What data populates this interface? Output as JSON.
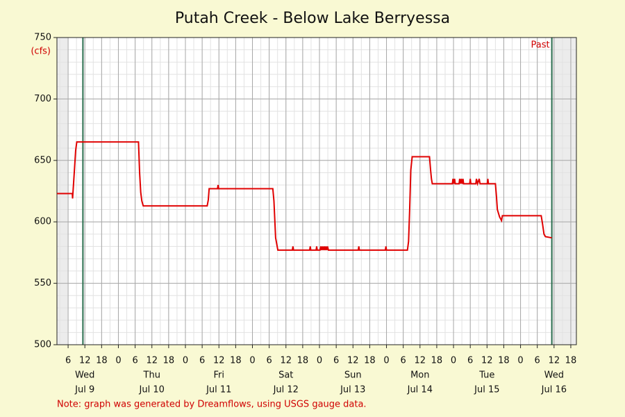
{
  "chart_data": {
    "type": "line",
    "title": "Putah Creek - Below Lake Berryessa",
    "y_label": "(cfs)",
    "note": "Note: graph was generated by Dreamflows, using USGS gauge data.",
    "past_label": "Past",
    "xlim": [
      2,
      188
    ],
    "ylim": [
      500,
      750
    ],
    "yticks": [
      500,
      550,
      600,
      650,
      700,
      750
    ],
    "xticks": [
      6,
      12,
      18,
      {
        "value": 24,
        "label": "0"
      },
      {
        "value": 30,
        "label": "6"
      },
      {
        "value": 36,
        "label": "12"
      },
      {
        "value": 42,
        "label": "18"
      },
      {
        "value": 48,
        "label": "0"
      },
      {
        "value": 54,
        "label": "6"
      },
      {
        "value": 60,
        "label": "12"
      },
      {
        "value": 66,
        "label": "18"
      },
      {
        "value": 72,
        "label": "0"
      },
      {
        "value": 78,
        "label": "6"
      },
      {
        "value": 84,
        "label": "12"
      },
      {
        "value": 90,
        "label": "18"
      },
      {
        "value": 96,
        "label": "0"
      },
      {
        "value": 102,
        "label": "6"
      },
      {
        "value": 108,
        "label": "12"
      },
      {
        "value": 114,
        "label": "18"
      },
      {
        "value": 120,
        "label": "0"
      },
      {
        "value": 126,
        "label": "6"
      },
      {
        "value": 132,
        "label": "12"
      },
      {
        "value": 138,
        "label": "18"
      },
      {
        "value": 144,
        "label": "0"
      },
      {
        "value": 150,
        "label": "6"
      },
      {
        "value": 156,
        "label": "12"
      },
      {
        "value": 162,
        "label": "18"
      },
      {
        "value": 168,
        "label": "0"
      },
      {
        "value": 174,
        "label": "6"
      },
      {
        "value": 180,
        "label": "12"
      },
      {
        "value": 186,
        "label": "18"
      }
    ],
    "day_labels": [
      {
        "value": 12,
        "label": "Wed",
        "date": "Jul 9"
      },
      {
        "value": 36,
        "label": "Thu",
        "date": "Jul 10"
      },
      {
        "value": 60,
        "label": "Fri",
        "date": "Jul 11"
      },
      {
        "value": 84,
        "label": "Sat",
        "date": "Jul 12"
      },
      {
        "value": 108,
        "label": "Sun",
        "date": "Jul 13"
      },
      {
        "value": 132,
        "label": "Mon",
        "date": "Jul 14"
      },
      {
        "value": 156,
        "label": "Tue",
        "date": "Jul 15"
      },
      {
        "value": 180,
        "label": "Wed",
        "date": "Jul 16"
      }
    ],
    "markers": [
      11.3,
      179.2
    ],
    "shaded": [
      [
        2,
        6
      ],
      [
        179.2,
        188
      ]
    ],
    "grid": true,
    "series": [
      {
        "name": "Flow",
        "color": "#e00000",
        "x": [
          2,
          7.5,
          7.6,
          8.2,
          8.7,
          9.1,
          31.2,
          31.6,
          32.0,
          32.4,
          32.9,
          55.8,
          56.2,
          56.5,
          59.5,
          59.7,
          59.9,
          79.3,
          79.7,
          80.3,
          81.1,
          86.3,
          86.5,
          86.7,
          92.5,
          92.7,
          92.9,
          94.8,
          95.0,
          95.2,
          96.2,
          96.5,
          96.8,
          97.1,
          97.4,
          97.7,
          98.0,
          98.3,
          98.6,
          98.9,
          99.2,
          99.4,
          109.9,
          110.1,
          110.3,
          119.6,
          119.8,
          120.0,
          127.5,
          127.9,
          128.3,
          128.7,
          129.2,
          135.4,
          135.8,
          136.1,
          136.4,
          143.6,
          143.8,
          144.1,
          144.4,
          144.6,
          146.0,
          146.2,
          146.6,
          146.8,
          147.2,
          147.4,
          147.6,
          149.8,
          150.0,
          150.2,
          152.0,
          152.2,
          152.6,
          153.2,
          153.5,
          156.1,
          156.3,
          156.5,
          159.0,
          159.4,
          159.7,
          160.5,
          161.2,
          161.5,
          175.4,
          175.9,
          176.4,
          176.9,
          179.2
        ],
        "values": [
          623,
          623,
          619,
          640,
          658,
          665,
          665,
          640,
          624,
          617,
          613,
          613,
          618,
          627,
          627,
          630,
          627,
          627,
          617,
          587,
          577,
          577,
          580,
          577,
          577,
          580,
          577,
          577,
          580,
          577,
          577,
          580,
          577,
          580,
          577,
          580,
          577,
          580,
          577,
          580,
          577,
          577,
          577,
          580,
          577,
          577,
          580,
          577,
          577,
          584,
          610,
          642,
          653,
          653,
          642,
          635,
          631,
          631,
          635,
          631,
          635,
          631,
          631,
          635,
          631,
          635,
          631,
          635,
          631,
          631,
          635,
          631,
          631,
          635,
          631,
          635,
          631,
          631,
          635,
          631,
          631,
          620,
          610,
          604,
          601,
          605,
          605,
          598,
          590,
          588,
          587
        ]
      }
    ]
  }
}
